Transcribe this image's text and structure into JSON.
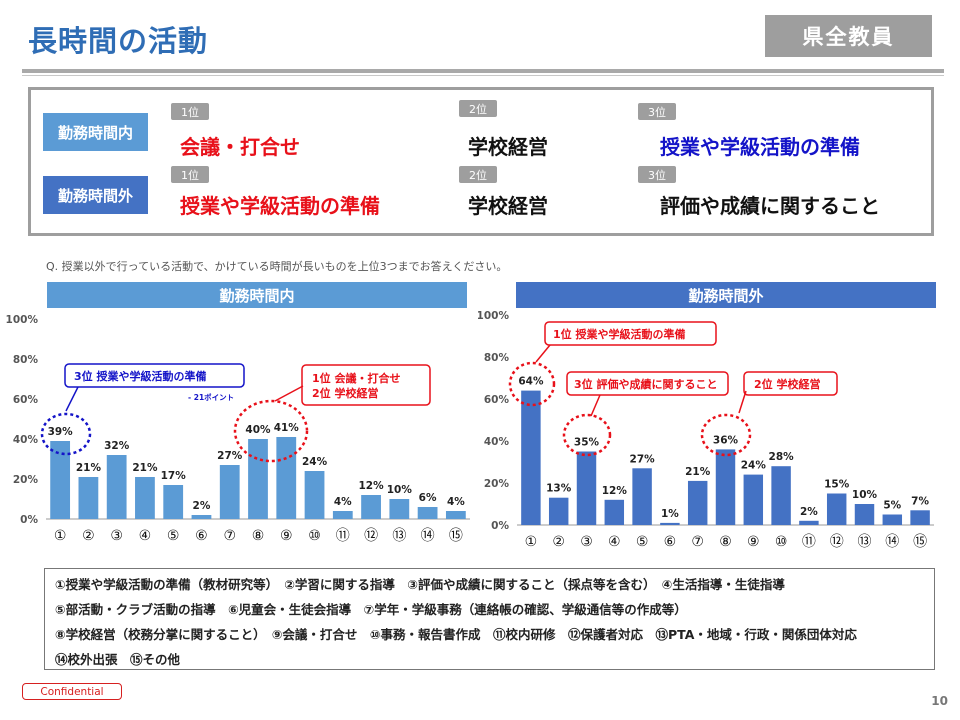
{
  "header": {
    "title": "長時間の活動",
    "audience_badge": "県全教員"
  },
  "summary": {
    "rows": [
      {
        "label": "勤務時間内",
        "label_color": "#5b9bd5",
        "items": [
          {
            "rank": "1位",
            "text": "会議・打合せ",
            "color": "#e8111a"
          },
          {
            "rank": "2位",
            "text": "学校経営",
            "color": "#111111"
          },
          {
            "rank": "3位",
            "text": "授業や学級活動の準備",
            "color": "#1414c8"
          }
        ]
      },
      {
        "label": "勤務時間外",
        "label_color": "#4472c4",
        "items": [
          {
            "rank": "1位",
            "text": "授業や学級活動の準備",
            "color": "#e8111a"
          },
          {
            "rank": "2位",
            "text": "学校経営",
            "color": "#111111"
          },
          {
            "rank": "3位",
            "text": "評価や成績に関すること",
            "color": "#111111"
          }
        ]
      }
    ]
  },
  "question": "Q. 授業以外で行っている活動で、かけている時間が長いものを上位3つまでお答えください。",
  "chart_data": [
    {
      "type": "bar",
      "title": "勤務時間内",
      "header_color": "#5b9bd5",
      "categories": [
        "①",
        "②",
        "③",
        "④",
        "⑤",
        "⑥",
        "⑦",
        "⑧",
        "⑨",
        "⑩",
        "⑪",
        "⑫",
        "⑬",
        "⑭",
        "⑮"
      ],
      "values": [
        39,
        21,
        32,
        21,
        17,
        2,
        27,
        40,
        41,
        24,
        4,
        12,
        10,
        6,
        4
      ],
      "data_labels": [
        "39%",
        "21%",
        "32%",
        "21%",
        "17%",
        "2%",
        "27%",
        "40%",
        "41%",
        "24%",
        "4%",
        "12%",
        "10%",
        "6%",
        "4%"
      ],
      "ylim": [
        0,
        100
      ],
      "yticks": [
        "0%",
        "20%",
        "40%",
        "60%",
        "80%",
        "100%"
      ],
      "bar_color": "#5b9bd5",
      "annotations": [
        {
          "lines": [
            "3位 授業や学級活動の準備"
          ],
          "color": "#1414c8",
          "target": "①"
        },
        {
          "lines": [
            "1位 会議・打合せ",
            "2位 学校経営"
          ],
          "color": "#e8111a",
          "target": "⑧⑨"
        }
      ],
      "note": "- 21ポイント"
    },
    {
      "type": "bar",
      "title": "勤務時間外",
      "header_color": "#4472c4",
      "categories": [
        "①",
        "②",
        "③",
        "④",
        "⑤",
        "⑥",
        "⑦",
        "⑧",
        "⑨",
        "⑩",
        "⑪",
        "⑫",
        "⑬",
        "⑭",
        "⑮"
      ],
      "values": [
        64,
        13,
        35,
        12,
        27,
        1,
        21,
        36,
        24,
        28,
        2,
        15,
        10,
        5,
        7
      ],
      "data_labels": [
        "64%",
        "13%",
        "35%",
        "12%",
        "27%",
        "1%",
        "21%",
        "36%",
        "24%",
        "28%",
        "2%",
        "15%",
        "10%",
        "5%",
        "7%"
      ],
      "ylim": [
        0,
        100
      ],
      "yticks": [
        "0%",
        "20%",
        "40%",
        "60%",
        "80%",
        "100%"
      ],
      "bar_color": "#4472c4",
      "annotations": [
        {
          "lines": [
            "1位 授業や学級活動の準備"
          ],
          "color": "#e8111a",
          "target": "①"
        },
        {
          "lines": [
            "3位 評価や成績に関すること"
          ],
          "color": "#e8111a",
          "target": "③"
        },
        {
          "lines": [
            "2位 学校経営"
          ],
          "color": "#e8111a",
          "target": "⑧"
        }
      ]
    }
  ],
  "legend": {
    "lines": [
      "①授業や学級活動の準備（教材研究等）　②学習に関する指導　③評価や成績に関すること（採点等を含む）　④生活指導・生徒指導",
      "⑤部活動・クラブ活動の指導　⑥児童会・生徒会指導　⑦学年・学級事務（連絡帳の確認、学級通信等の作成等）",
      "⑧学校経営（校務分掌に関すること）　⑨会議・打合せ　⑩事務・報告書作成　⑪校内研修　⑫保護者対応　⑬PTA・地域・行政・関係団体対応",
      "⑭校外出張　⑮その他"
    ]
  },
  "footer": {
    "confidential": "Confidential",
    "page_number": "10"
  }
}
